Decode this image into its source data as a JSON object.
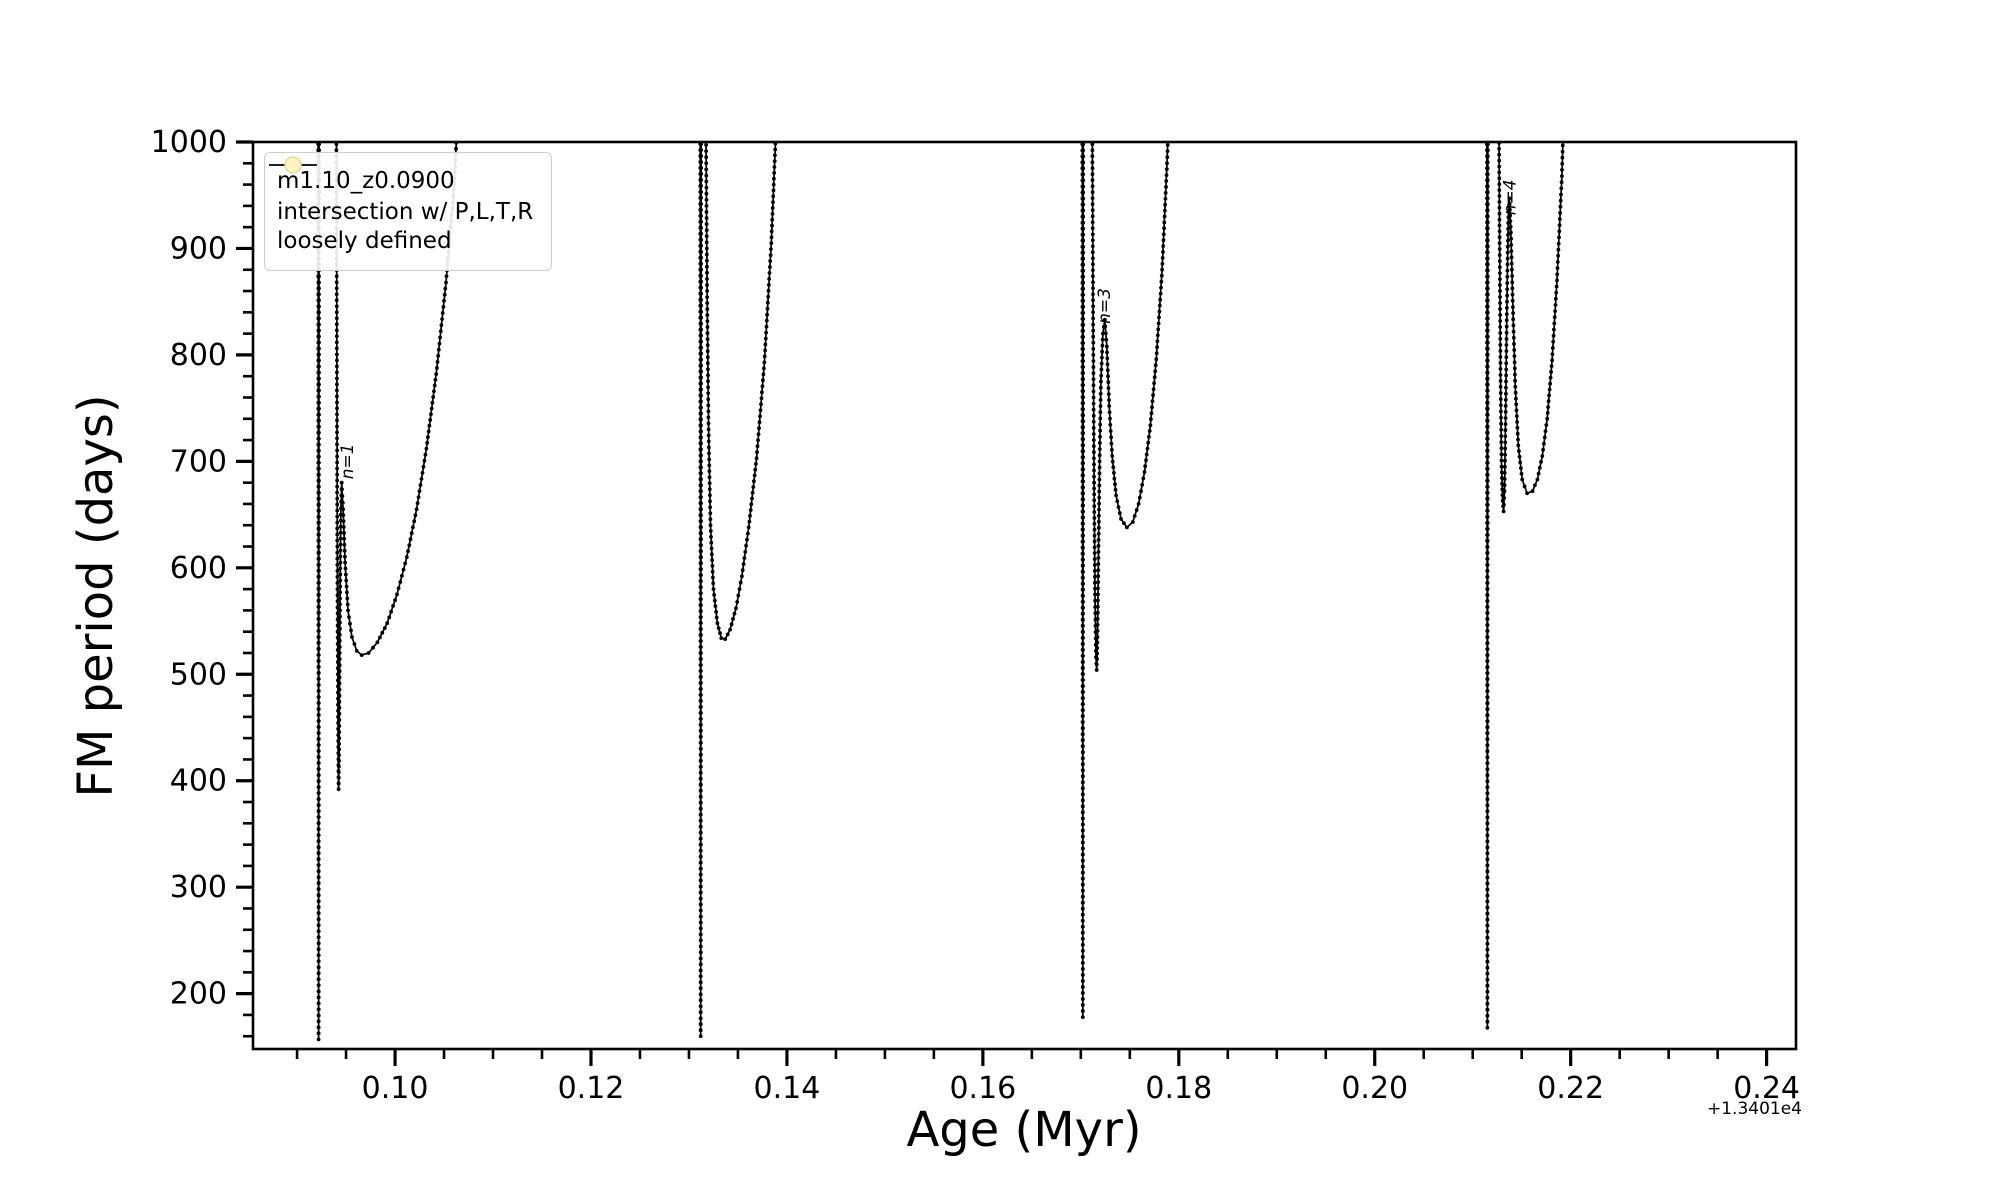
{
  "chart_data": {
    "type": "line",
    "title": "",
    "xlabel": "Age (Myr)",
    "ylabel": "FM period (days)",
    "x_offset_text": "+1.3401e4",
    "xlim": [
      0.0855,
      0.243
    ],
    "ylim": [
      148,
      1000
    ],
    "x_major_ticks": [
      0.1,
      0.12,
      0.14,
      0.16,
      0.18,
      0.2,
      0.22,
      0.24
    ],
    "x_major_labels": [
      "0.10",
      "0.12",
      "0.14",
      "0.16",
      "0.18",
      "0.20",
      "0.22",
      "0.24"
    ],
    "x_minor_step": 0.005,
    "y_major_ticks": [
      200,
      300,
      400,
      500,
      600,
      700,
      800,
      900,
      1000
    ],
    "y_major_labels": [
      "200",
      "300",
      "400",
      "500",
      "600",
      "700",
      "800",
      "900",
      "1000"
    ],
    "y_minor_step": 20,
    "grid": false,
    "axes_color": "#000000",
    "background": "#ffffff",
    "legend": {
      "position": "upper-left",
      "entries": [
        {
          "label": "m1.10_z0.0900",
          "type": "line-with-point-marker",
          "color": "#000000"
        },
        {
          "label_lines": [
            "intersection w/ P,L,T,R",
            "loosely defined"
          ],
          "type": "circle-marker",
          "fill": "#fdf3c0",
          "edge": "#e3d89a"
        }
      ]
    },
    "annotations": [
      {
        "text": "n=1",
        "x": 0.0957,
        "y": 700,
        "rotation": 90
      },
      {
        "text": "n=3",
        "x": 0.173,
        "y": 846,
        "rotation": 90
      },
      {
        "text": "n=4",
        "x": 0.21435,
        "y": 948,
        "rotation": 90
      }
    ],
    "series": [
      {
        "name": "m1.10_z0.0900",
        "color": "#000000",
        "marker": "point",
        "points": [
          [
            0.09215,
            1060
          ],
          [
            0.0922,
            157
          ],
          [
            0.09225,
            1060
          ],
          [
            0.094,
            1060
          ],
          [
            0.0941,
            620
          ],
          [
            0.09418,
            460
          ],
          [
            0.09424,
            392
          ],
          [
            0.0943,
            440
          ],
          [
            0.09438,
            560
          ],
          [
            0.09446,
            650
          ],
          [
            0.09455,
            680
          ],
          [
            0.0947,
            655
          ],
          [
            0.0949,
            605
          ],
          [
            0.0952,
            560
          ],
          [
            0.0956,
            535
          ],
          [
            0.0961,
            522
          ],
          [
            0.0966,
            518
          ],
          [
            0.0973,
            520
          ],
          [
            0.0982,
            530
          ],
          [
            0.0992,
            548
          ],
          [
            0.1002,
            575
          ],
          [
            0.1012,
            610
          ],
          [
            0.1022,
            655
          ],
          [
            0.1032,
            712
          ],
          [
            0.1042,
            782
          ],
          [
            0.1052,
            868
          ],
          [
            0.106,
            955
          ],
          [
            0.1066,
            1060
          ],
          [
            0.13115,
            1060
          ],
          [
            0.1312,
            160
          ],
          [
            0.13125,
            1060
          ],
          [
            0.1317,
            1060
          ],
          [
            0.13185,
            860
          ],
          [
            0.132,
            730
          ],
          [
            0.1322,
            640
          ],
          [
            0.1325,
            580
          ],
          [
            0.1329,
            548
          ],
          [
            0.1333,
            534
          ],
          [
            0.1337,
            533
          ],
          [
            0.1342,
            542
          ],
          [
            0.1348,
            562
          ],
          [
            0.1354,
            592
          ],
          [
            0.1361,
            638
          ],
          [
            0.1369,
            703
          ],
          [
            0.1377,
            793
          ],
          [
            0.1384,
            905
          ],
          [
            0.1389,
            1015
          ],
          [
            0.1391,
            1060
          ],
          [
            0.17015,
            1060
          ],
          [
            0.1702,
            178
          ],
          [
            0.17025,
            1060
          ],
          [
            0.17115,
            1060
          ],
          [
            0.17125,
            840
          ],
          [
            0.17135,
            680
          ],
          [
            0.17145,
            575
          ],
          [
            0.17155,
            516
          ],
          [
            0.17162,
            504
          ],
          [
            0.1717,
            535
          ],
          [
            0.1718,
            615
          ],
          [
            0.17192,
            700
          ],
          [
            0.17205,
            775
          ],
          [
            0.17225,
            820
          ],
          [
            0.17245,
            833
          ],
          [
            0.17265,
            808
          ],
          [
            0.1729,
            752
          ],
          [
            0.1732,
            705
          ],
          [
            0.1736,
            668
          ],
          [
            0.1741,
            646
          ],
          [
            0.1747,
            638
          ],
          [
            0.1753,
            643
          ],
          [
            0.1759,
            660
          ],
          [
            0.1765,
            690
          ],
          [
            0.1771,
            734
          ],
          [
            0.1777,
            796
          ],
          [
            0.1783,
            880
          ],
          [
            0.1788,
            980
          ],
          [
            0.1791,
            1060
          ],
          [
            0.21145,
            1060
          ],
          [
            0.2115,
            168
          ],
          [
            0.21155,
            1060
          ],
          [
            0.21265,
            1060
          ],
          [
            0.21275,
            905
          ],
          [
            0.21285,
            770
          ],
          [
            0.21295,
            695
          ],
          [
            0.21305,
            663
          ],
          [
            0.21315,
            653
          ],
          [
            0.21325,
            672
          ],
          [
            0.21335,
            735
          ],
          [
            0.21345,
            815
          ],
          [
            0.21355,
            885
          ],
          [
            0.21365,
            935
          ],
          [
            0.21375,
            947
          ],
          [
            0.2139,
            915
          ],
          [
            0.2141,
            845
          ],
          [
            0.21435,
            770
          ],
          [
            0.21465,
            715
          ],
          [
            0.21505,
            683
          ],
          [
            0.21555,
            670
          ],
          [
            0.2161,
            672
          ],
          [
            0.2166,
            683
          ],
          [
            0.2171,
            705
          ],
          [
            0.2176,
            740
          ],
          [
            0.2181,
            795
          ],
          [
            0.2186,
            870
          ],
          [
            0.2191,
            968
          ],
          [
            0.2194,
            1060
          ]
        ]
      }
    ]
  }
}
